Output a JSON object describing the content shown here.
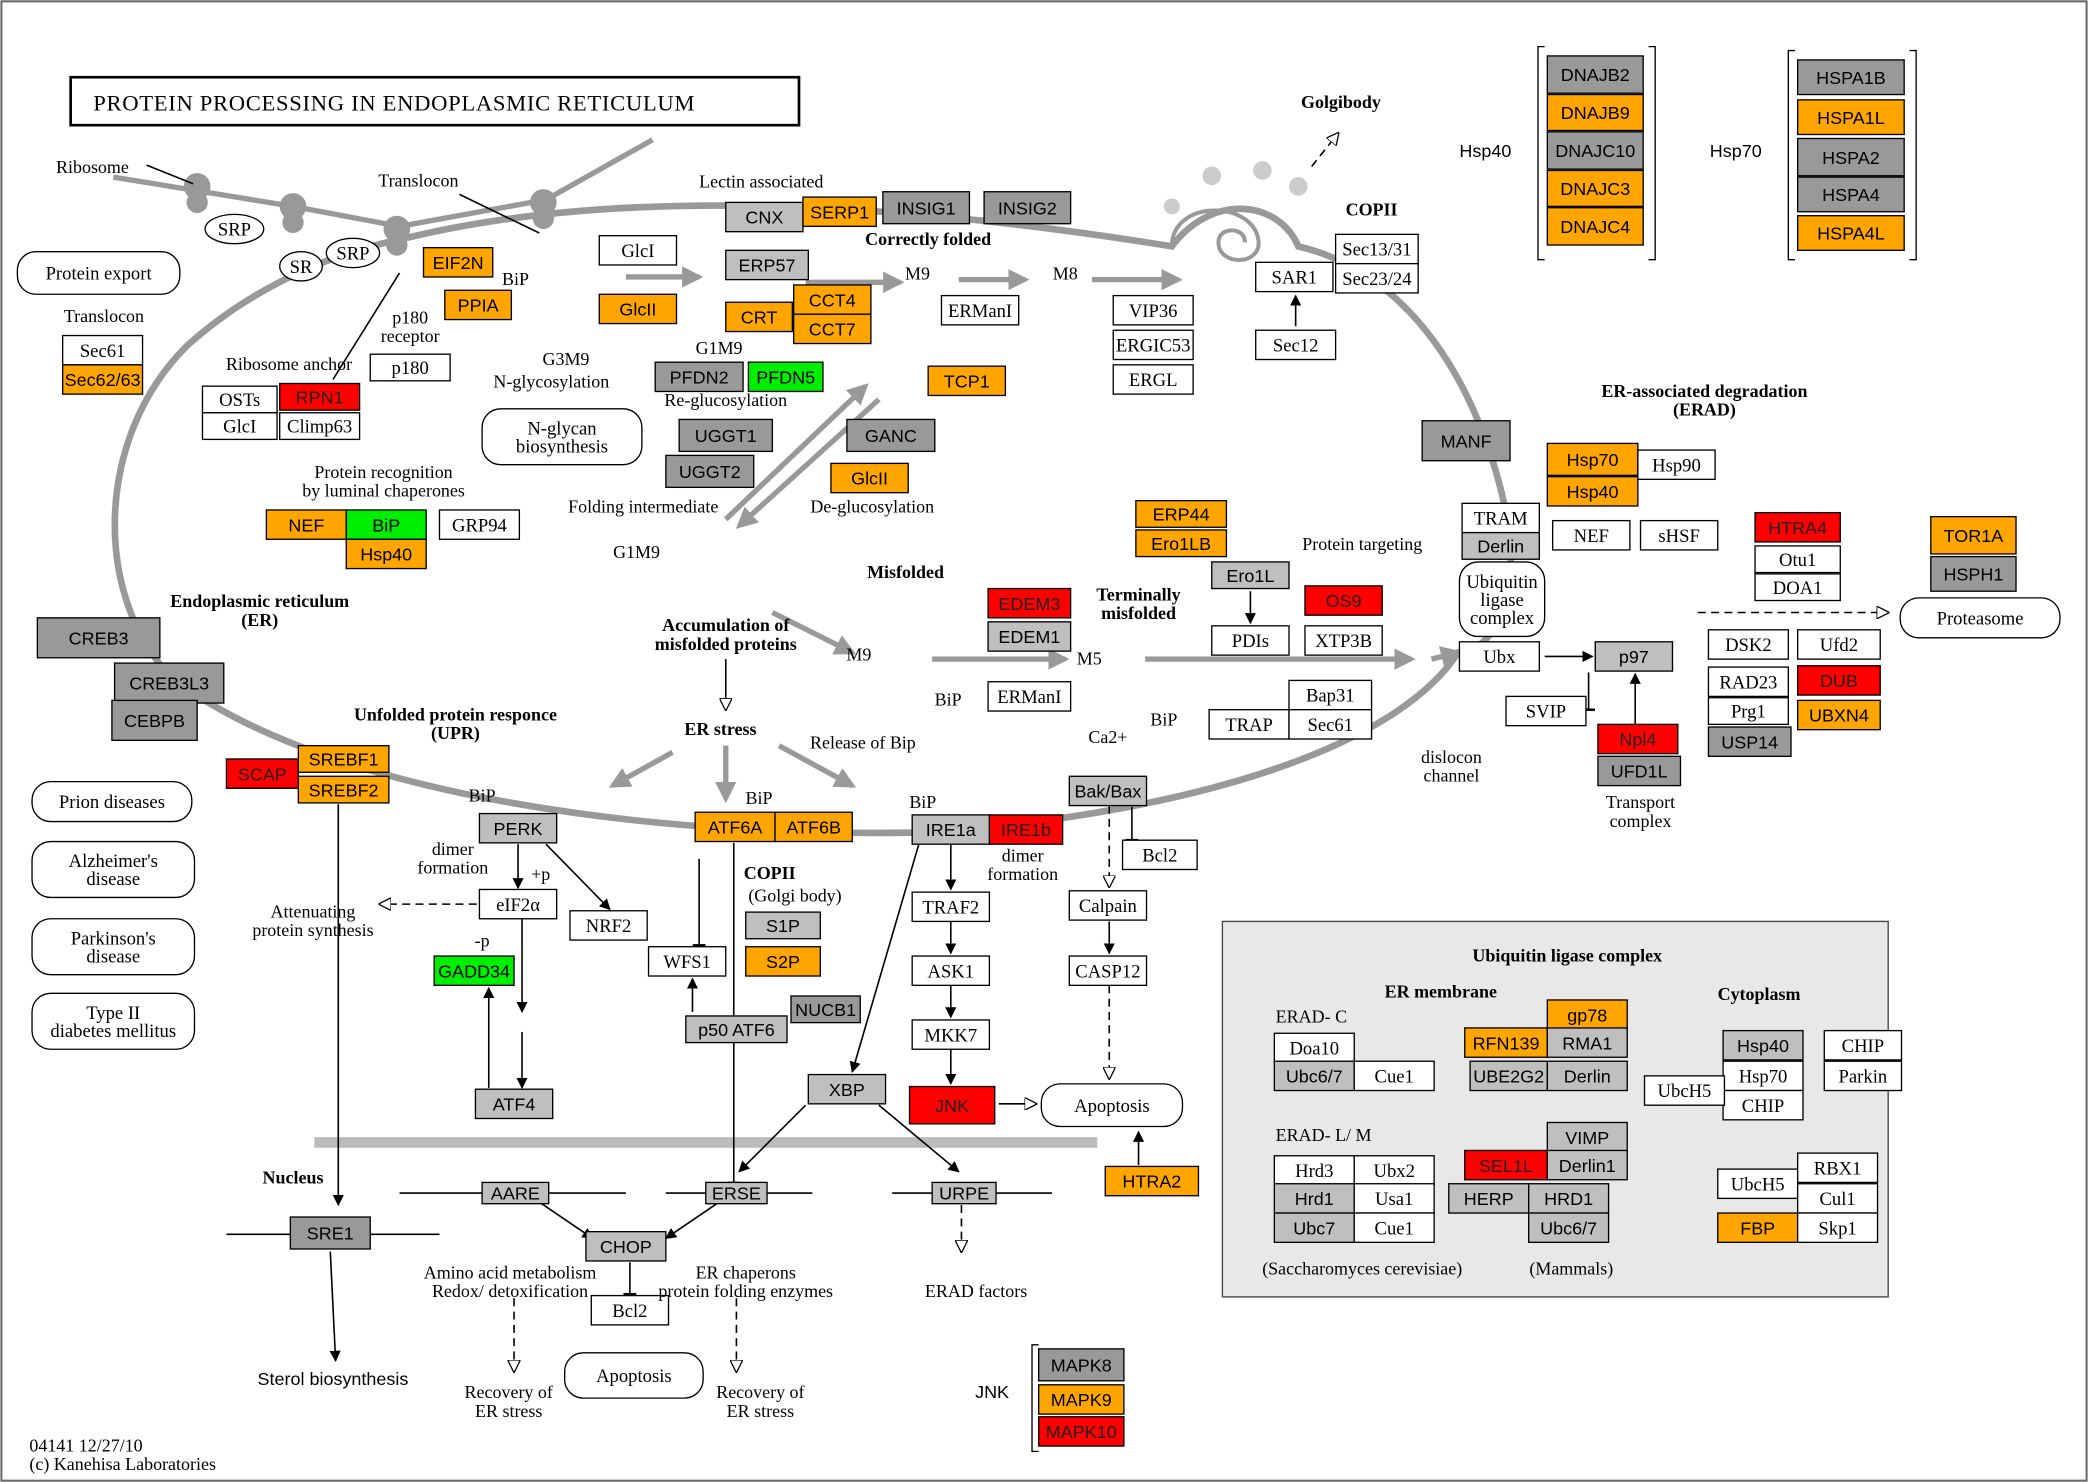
{
  "title": "PROTEIN PROCESSING IN ENDOPLASMIC RETICULUM",
  "colors": {
    "orange": "#ffa500",
    "red": "#ff0000",
    "green": "#00ee00",
    "light-gray": "#bfbfbf",
    "dark-gray": "#999999",
    "white": "#ffffff",
    "membrane": "#999999",
    "inset": "#e8e8e8"
  },
  "nodes": [
    {
      "label": "EIF2N",
      "color": "orange"
    },
    {
      "label": "PPIA",
      "color": "orange"
    },
    {
      "label": "GlcI",
      "color": "white"
    },
    {
      "label": "GlcII",
      "color": "orange"
    },
    {
      "label": "CNX",
      "color": "light-gray"
    },
    {
      "label": "SERP1",
      "color": "orange"
    },
    {
      "label": "INSIG1",
      "color": "dark-gray"
    },
    {
      "label": "INSIG2",
      "color": "dark-gray"
    },
    {
      "label": "ERP57",
      "color": "light-gray"
    },
    {
      "label": "CCT4",
      "color": "orange"
    },
    {
      "label": "CRT",
      "color": "orange"
    },
    {
      "label": "CCT7",
      "color": "orange"
    },
    {
      "label": "PFDN2",
      "color": "dark-gray"
    },
    {
      "label": "PFDN5",
      "color": "green"
    },
    {
      "label": "TCP1",
      "color": "orange"
    },
    {
      "label": "UGGT1",
      "color": "dark-gray"
    },
    {
      "label": "UGGT2",
      "color": "dark-gray"
    },
    {
      "label": "GANC",
      "color": "dark-gray"
    },
    {
      "label": "GlcII",
      "color": "orange"
    },
    {
      "label": "ERManI",
      "color": "white"
    },
    {
      "label": "VIP36",
      "color": "white"
    },
    {
      "label": "ERGIC53",
      "color": "white"
    },
    {
      "label": "ERGL",
      "color": "white"
    },
    {
      "label": "SAR1",
      "color": "white"
    },
    {
      "label": "Sec13/31",
      "color": "white"
    },
    {
      "label": "Sec23/24",
      "color": "white"
    },
    {
      "label": "Sec12",
      "color": "white"
    },
    {
      "label": "Sec61",
      "color": "white"
    },
    {
      "label": "Sec62/63",
      "color": "orange"
    },
    {
      "label": "OSTs",
      "color": "white"
    },
    {
      "label": "RPN1",
      "color": "red"
    },
    {
      "label": "GlcI",
      "color": "white"
    },
    {
      "label": "Climp63",
      "color": "white"
    },
    {
      "label": "p180",
      "color": "white"
    },
    {
      "label": "NEF",
      "color": "orange"
    },
    {
      "label": "BiP",
      "color": "green"
    },
    {
      "label": "Hsp40",
      "color": "orange"
    },
    {
      "label": "GRP94",
      "color": "white"
    },
    {
      "label": "ERP44",
      "color": "orange"
    },
    {
      "label": "Ero1LB",
      "color": "orange"
    },
    {
      "label": "Ero1L",
      "color": "light-gray"
    },
    {
      "label": "PDIs",
      "color": "white"
    },
    {
      "label": "OS9",
      "color": "red"
    },
    {
      "label": "XTP3B",
      "color": "white"
    },
    {
      "label": "EDEM3",
      "color": "red"
    },
    {
      "label": "EDEM1",
      "color": "light-gray"
    },
    {
      "label": "ERManI",
      "color": "white"
    },
    {
      "label": "Bap31",
      "color": "white"
    },
    {
      "label": "TRAP",
      "color": "white"
    },
    {
      "label": "Sec61",
      "color": "white"
    },
    {
      "label": "MANF",
      "color": "dark-gray"
    },
    {
      "label": "Hsp70",
      "color": "orange"
    },
    {
      "label": "Hsp90",
      "color": "white"
    },
    {
      "label": "Hsp40",
      "color": "orange"
    },
    {
      "label": "TRAM",
      "color": "white"
    },
    {
      "label": "Derlin",
      "color": "light-gray"
    },
    {
      "label": "NEF",
      "color": "white"
    },
    {
      "label": "sHSF",
      "color": "white"
    },
    {
      "label": "Ubx",
      "color": "white"
    },
    {
      "label": "p97",
      "color": "light-gray"
    },
    {
      "label": "SVIP",
      "color": "white"
    },
    {
      "label": "Npl4",
      "color": "red"
    },
    {
      "label": "UFD1L",
      "color": "dark-gray"
    },
    {
      "label": "HTRA4",
      "color": "red"
    },
    {
      "label": "Otu1",
      "color": "white"
    },
    {
      "label": "DOA1",
      "color": "white"
    },
    {
      "label": "TOR1A",
      "color": "orange"
    },
    {
      "label": "HSPH1",
      "color": "dark-gray"
    },
    {
      "label": "DSK2",
      "color": "white"
    },
    {
      "label": "Ufd2",
      "color": "white"
    },
    {
      "label": "RAD23",
      "color": "white"
    },
    {
      "label": "DUB",
      "color": "red"
    },
    {
      "label": "Prg1",
      "color": "white"
    },
    {
      "label": "UBXN4",
      "color": "orange"
    },
    {
      "label": "USP14",
      "color": "dark-gray"
    },
    {
      "label": "DNAJB2",
      "color": "dark-gray"
    },
    {
      "label": "DNAJB9",
      "color": "orange"
    },
    {
      "label": "DNAJC10",
      "color": "dark-gray"
    },
    {
      "label": "DNAJC3",
      "color": "orange"
    },
    {
      "label": "DNAJC4",
      "color": "orange"
    },
    {
      "label": "HSPA1B",
      "color": "dark-gray"
    },
    {
      "label": "HSPA1L",
      "color": "orange"
    },
    {
      "label": "HSPA2",
      "color": "dark-gray"
    },
    {
      "label": "HSPA4",
      "color": "dark-gray"
    },
    {
      "label": "HSPA4L",
      "color": "orange"
    },
    {
      "label": "CREB3",
      "color": "dark-gray"
    },
    {
      "label": "CREB3L3",
      "color": "dark-gray"
    },
    {
      "label": "CEBPB",
      "color": "dark-gray"
    },
    {
      "label": "SCAP",
      "color": "red"
    },
    {
      "label": "SREBF1",
      "color": "orange"
    },
    {
      "label": "SREBF2",
      "color": "orange"
    },
    {
      "label": "PERK",
      "color": "light-gray"
    },
    {
      "label": "eIF2α",
      "color": "white"
    },
    {
      "label": "NRF2",
      "color": "white"
    },
    {
      "label": "GADD34",
      "color": "green"
    },
    {
      "label": "ATF4",
      "color": "light-gray"
    },
    {
      "label": "ATF6A",
      "color": "orange"
    },
    {
      "label": "ATF6B",
      "color": "orange"
    },
    {
      "label": "IRE1a",
      "color": "light-gray"
    },
    {
      "label": "IRE1b",
      "color": "red"
    },
    {
      "label": "S1P",
      "color": "light-gray"
    },
    {
      "label": "S2P",
      "color": "orange"
    },
    {
      "label": "NUCB1",
      "color": "dark-gray"
    },
    {
      "label": "WFS1",
      "color": "white"
    },
    {
      "label": "p50 ATF6",
      "color": "light-gray"
    },
    {
      "label": "TRAF2",
      "color": "white"
    },
    {
      "label": "ASK1",
      "color": "white"
    },
    {
      "label": "MKK7",
      "color": "white"
    },
    {
      "label": "JNK",
      "color": "red"
    },
    {
      "label": "XBP",
      "color": "light-gray"
    },
    {
      "label": "Bak/Bax",
      "color": "light-gray"
    },
    {
      "label": "Bcl2",
      "color": "white"
    },
    {
      "label": "Calpain",
      "color": "white"
    },
    {
      "label": "CASP12",
      "color": "white"
    },
    {
      "label": "HTRA2",
      "color": "orange"
    },
    {
      "label": "SRE1",
      "color": "dark-gray"
    },
    {
      "label": "AARE",
      "color": "light-gray"
    },
    {
      "label": "ERSE",
      "color": "light-gray"
    },
    {
      "label": "URPE",
      "color": "light-gray"
    },
    {
      "label": "CHOP",
      "color": "light-gray"
    },
    {
      "label": "Bcl2",
      "color": "white"
    },
    {
      "label": "MAPK8",
      "color": "dark-gray"
    },
    {
      "label": "MAPK9",
      "color": "orange"
    },
    {
      "label": "MAPK10",
      "color": "red"
    },
    {
      "label": "Doa10",
      "color": "white"
    },
    {
      "label": "Ubc6/7",
      "color": "light-gray"
    },
    {
      "label": "Cue1",
      "color": "white"
    },
    {
      "label": "gp78",
      "color": "orange"
    },
    {
      "label": "RFN139",
      "color": "orange"
    },
    {
      "label": "RMA1",
      "color": "light-gray"
    },
    {
      "label": "UBE2G2",
      "color": "light-gray"
    },
    {
      "label": "Derlin",
      "color": "light-gray"
    },
    {
      "label": "Hsp40",
      "color": "light-gray"
    },
    {
      "label": "Hsp70",
      "color": "white"
    },
    {
      "label": "CHIP",
      "color": "white"
    },
    {
      "label": "UbcH5",
      "color": "white"
    },
    {
      "label": "CHIP",
      "color": "white"
    },
    {
      "label": "Parkin",
      "color": "white"
    },
    {
      "label": "VIMP",
      "color": "light-gray"
    },
    {
      "label": "SEL1L",
      "color": "red"
    },
    {
      "label": "Derlin1",
      "color": "light-gray"
    },
    {
      "label": "HERP",
      "color": "light-gray"
    },
    {
      "label": "HRD1",
      "color": "light-gray"
    },
    {
      "label": "Ubc6/7",
      "color": "light-gray"
    },
    {
      "label": "Hrd3",
      "color": "white"
    },
    {
      "label": "Ubx2",
      "color": "white"
    },
    {
      "label": "Hrd1",
      "color": "light-gray"
    },
    {
      "label": "Usa1",
      "color": "white"
    },
    {
      "label": "Ubc7",
      "color": "light-gray"
    },
    {
      "label": "Cue1",
      "color": "white"
    },
    {
      "label": "UbcH5",
      "color": "white"
    },
    {
      "label": "RBX1",
      "color": "white"
    },
    {
      "label": "Cul1",
      "color": "white"
    },
    {
      "label": "FBP",
      "color": "orange"
    },
    {
      "label": "Skp1",
      "color": "white"
    }
  ],
  "map_links": [
    {
      "lines": [
        "Protein export"
      ]
    },
    {
      "lines": [
        "N-glycan",
        "biosynthesis"
      ]
    },
    {
      "lines": [
        "Ubiquitin",
        "ligase",
        "complex"
      ]
    },
    {
      "lines": [
        "Proteasome"
      ]
    },
    {
      "lines": [
        "Prion diseases"
      ]
    },
    {
      "lines": [
        "Alzheimer's",
        "disease"
      ]
    },
    {
      "lines": [
        "Parkinson's",
        "disease"
      ]
    },
    {
      "lines": [
        "Type II",
        "diabetes mellitus"
      ]
    },
    {
      "lines": [
        "Apoptosis"
      ]
    },
    {
      "lines": [
        "Apoptosis"
      ]
    }
  ],
  "ellipses": [
    "SRP",
    "SRP",
    "SR"
  ],
  "labels": [
    {
      "lines": [
        "Ribosome"
      ]
    },
    {
      "lines": [
        "Translocon"
      ]
    },
    {
      "lines": [
        "Lectin associated"
      ]
    },
    {
      "lines": [
        "Golgibody"
      ],
      "bold": true
    },
    {
      "lines": [
        "COPII"
      ],
      "bold": true
    },
    {
      "lines": [
        "Correctly folded"
      ],
      "bold": true
    },
    {
      "lines": [
        "Hsp40"
      ],
      "sans": true
    },
    {
      "lines": [
        "Hsp70"
      ],
      "sans": true
    },
    {
      "lines": [
        "BiP"
      ]
    },
    {
      "lines": [
        "p180",
        "receptor"
      ]
    },
    {
      "lines": [
        "G3M9"
      ]
    },
    {
      "lines": [
        "N-glycosylation"
      ]
    },
    {
      "lines": [
        "G1M9"
      ]
    },
    {
      "lines": [
        "Re-glucosylation"
      ]
    },
    {
      "lines": [
        "M9"
      ]
    },
    {
      "lines": [
        "M8"
      ]
    },
    {
      "lines": [
        "Translocon"
      ]
    },
    {
      "lines": [
        "Ribosome anchor"
      ]
    },
    {
      "lines": [
        "Protein recognition",
        "by luminal chaperones"
      ]
    },
    {
      "lines": [
        "Folding intermediate"
      ]
    },
    {
      "lines": [
        "De-glucosylation"
      ]
    },
    {
      "lines": [
        "G1M9"
      ]
    },
    {
      "lines": [
        "Protein targeting"
      ]
    },
    {
      "lines": [
        "Misfolded"
      ],
      "bold": true
    },
    {
      "lines": [
        "Terminally",
        "misfolded"
      ],
      "bold": true
    },
    {
      "lines": [
        "Endoplasmic reticulum",
        "(ER)"
      ],
      "bold": true
    },
    {
      "lines": [
        "Accumulation of",
        "misfolded proteins"
      ],
      "bold": true
    },
    {
      "lines": [
        "M9"
      ]
    },
    {
      "lines": [
        "M5"
      ]
    },
    {
      "lines": [
        "BiP"
      ]
    },
    {
      "lines": [
        "BiP"
      ]
    },
    {
      "lines": [
        "Ca2+"
      ]
    },
    {
      "lines": [
        "ER stress"
      ],
      "bold": true
    },
    {
      "lines": [
        "Release of Bip"
      ]
    },
    {
      "lines": [
        "Unfolded protein responce",
        "(UPR)"
      ],
      "bold": true
    },
    {
      "lines": [
        "ER-associated degradation",
        "(ERAD)"
      ],
      "bold": true
    },
    {
      "lines": [
        "Transport",
        "complex"
      ]
    },
    {
      "lines": [
        "dislocon",
        "channel"
      ]
    },
    {
      "lines": [
        "BiP"
      ]
    },
    {
      "lines": [
        "BiP"
      ]
    },
    {
      "lines": [
        "BiP"
      ]
    },
    {
      "lines": [
        "dimer",
        "formation"
      ]
    },
    {
      "lines": [
        "+p"
      ]
    },
    {
      "lines": [
        "-p"
      ]
    },
    {
      "lines": [
        "dimer",
        "formation"
      ]
    },
    {
      "lines": [
        "COPII"
      ],
      "bold": true
    },
    {
      "lines": [
        "(Golgi body)"
      ]
    },
    {
      "lines": [
        "Attenuating",
        "protein synthesis"
      ]
    },
    {
      "lines": [
        "Nucleus"
      ],
      "bold": true
    },
    {
      "lines": [
        "Amino acid  metabolism",
        "Redox/ detoxification"
      ]
    },
    {
      "lines": [
        "ER chaperons",
        "protein folding enzymes"
      ]
    },
    {
      "lines": [
        "ERAD factors"
      ]
    },
    {
      "lines": [
        "Recovery of",
        "ER stress"
      ]
    },
    {
      "lines": [
        "Recovery of",
        "ER stress"
      ]
    },
    {
      "lines": [
        "Sterol biosynthesis"
      ],
      "sans": true
    },
    {
      "lines": [
        "JNK"
      ],
      "sans": true
    },
    {
      "lines": [
        "04141 12/27/10",
        "(c) Kanehisa Laboratories"
      ]
    },
    {
      "lines": [
        "Ubiquitin ligase complex"
      ],
      "bold": true
    },
    {
      "lines": [
        "ER membrane"
      ],
      "bold": true
    },
    {
      "lines": [
        "Cytoplasm"
      ],
      "bold": true
    },
    {
      "lines": [
        "ERAD- C"
      ]
    },
    {
      "lines": [
        "ERAD- L/ M"
      ]
    },
    {
      "lines": [
        "(Saccharomyces cerevisiae)"
      ]
    },
    {
      "lines": [
        "(Mammals)"
      ]
    }
  ]
}
